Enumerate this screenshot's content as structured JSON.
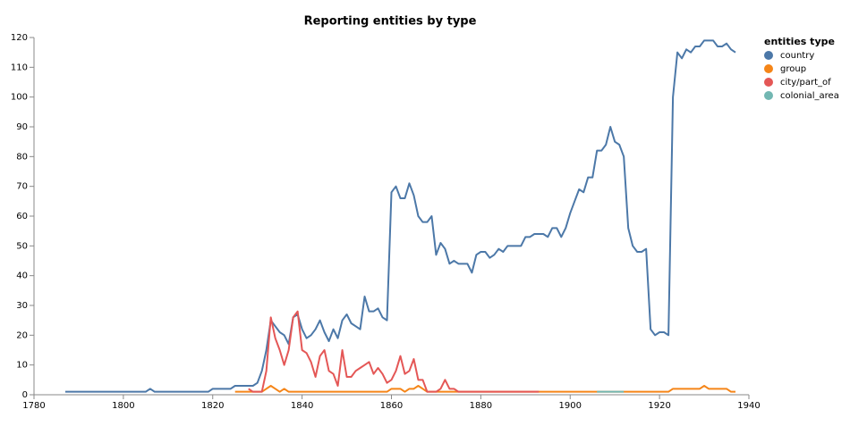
{
  "chart_data": {
    "type": "line",
    "title": "Reporting entities by type",
    "legend_title": "entities type",
    "legend_position": "right",
    "x": [
      1787,
      1788,
      1789,
      1790,
      1791,
      1792,
      1793,
      1794,
      1795,
      1796,
      1797,
      1798,
      1799,
      1800,
      1801,
      1802,
      1803,
      1804,
      1805,
      1806,
      1807,
      1808,
      1809,
      1810,
      1811,
      1812,
      1813,
      1814,
      1815,
      1816,
      1817,
      1818,
      1819,
      1820,
      1821,
      1822,
      1823,
      1824,
      1825,
      1826,
      1827,
      1828,
      1829,
      1830,
      1831,
      1832,
      1833,
      1834,
      1835,
      1836,
      1837,
      1838,
      1839,
      1840,
      1841,
      1842,
      1843,
      1844,
      1845,
      1846,
      1847,
      1848,
      1849,
      1850,
      1851,
      1852,
      1853,
      1854,
      1855,
      1856,
      1857,
      1858,
      1859,
      1860,
      1861,
      1862,
      1863,
      1864,
      1865,
      1866,
      1867,
      1868,
      1869,
      1870,
      1871,
      1872,
      1873,
      1874,
      1875,
      1876,
      1877,
      1878,
      1879,
      1880,
      1881,
      1882,
      1883,
      1884,
      1885,
      1886,
      1887,
      1888,
      1889,
      1890,
      1891,
      1892,
      1893,
      1894,
      1895,
      1896,
      1897,
      1898,
      1899,
      1900,
      1901,
      1902,
      1903,
      1904,
      1905,
      1906,
      1907,
      1908,
      1909,
      1910,
      1911,
      1912,
      1913,
      1914,
      1915,
      1916,
      1917,
      1918,
      1919,
      1920,
      1921,
      1922,
      1923,
      1924,
      1925,
      1926,
      1927,
      1928,
      1929,
      1930,
      1931,
      1932,
      1933,
      1934,
      1935,
      1936,
      1937
    ],
    "series": [
      {
        "name": "country",
        "color": "#4c78a8",
        "values": [
          1,
          1,
          1,
          1,
          1,
          1,
          1,
          1,
          1,
          1,
          1,
          1,
          1,
          1,
          1,
          1,
          1,
          1,
          1,
          2,
          1,
          1,
          1,
          1,
          1,
          1,
          1,
          1,
          1,
          1,
          1,
          1,
          1,
          2,
          2,
          2,
          2,
          2,
          3,
          3,
          3,
          3,
          3,
          4,
          8,
          15,
          25,
          23,
          21,
          20,
          17,
          26,
          27,
          22,
          19,
          20,
          22,
          25,
          21,
          18,
          22,
          19,
          25,
          27,
          24,
          23,
          22,
          33,
          28,
          28,
          29,
          26,
          25,
          68,
          70,
          66,
          66,
          71,
          67,
          60,
          58,
          58,
          60,
          47,
          51,
          49,
          44,
          45,
          44,
          44,
          44,
          41,
          47,
          48,
          48,
          46,
          47,
          49,
          48,
          50,
          50,
          50,
          50,
          53,
          53,
          54,
          54,
          54,
          53,
          56,
          56,
          53,
          56,
          61,
          65,
          69,
          68,
          73,
          73,
          82,
          82,
          84,
          90,
          85,
          84,
          80,
          56,
          50,
          48,
          48,
          49,
          22,
          20,
          21,
          21,
          20,
          100,
          115,
          113,
          116,
          115,
          117,
          117,
          119,
          119,
          119,
          117,
          117,
          118,
          116,
          115
        ]
      },
      {
        "name": "group",
        "color": "#f58518",
        "values": [
          null,
          null,
          null,
          null,
          null,
          null,
          null,
          null,
          null,
          null,
          null,
          null,
          null,
          null,
          null,
          null,
          null,
          null,
          null,
          null,
          null,
          null,
          null,
          null,
          null,
          null,
          null,
          null,
          null,
          null,
          null,
          null,
          null,
          null,
          null,
          null,
          null,
          null,
          1,
          1,
          1,
          1,
          1,
          1,
          1,
          2,
          3,
          2,
          1,
          2,
          1,
          1,
          1,
          1,
          1,
          1,
          1,
          1,
          1,
          1,
          1,
          1,
          1,
          1,
          1,
          1,
          1,
          1,
          1,
          1,
          1,
          1,
          1,
          2,
          2,
          2,
          1,
          2,
          2,
          3,
          2,
          1,
          1,
          1,
          1,
          1,
          1,
          1,
          1,
          1,
          1,
          1,
          1,
          1,
          1,
          1,
          1,
          1,
          1,
          1,
          1,
          1,
          1,
          1,
          1,
          1,
          1,
          1,
          1,
          1,
          1,
          1,
          1,
          1,
          1,
          1,
          1,
          1,
          1,
          1,
          1,
          1,
          1,
          1,
          1,
          1,
          1,
          1,
          1,
          1,
          1,
          1,
          1,
          1,
          1,
          1,
          2,
          2,
          2,
          2,
          2,
          2,
          2,
          3,
          2,
          2,
          2,
          2,
          2,
          1,
          1
        ]
      },
      {
        "name": "city/part_of",
        "color": "#e45756",
        "values": [
          null,
          null,
          null,
          null,
          null,
          null,
          null,
          null,
          null,
          null,
          null,
          null,
          null,
          null,
          null,
          null,
          null,
          null,
          null,
          null,
          null,
          null,
          null,
          null,
          null,
          null,
          null,
          null,
          null,
          null,
          null,
          null,
          null,
          null,
          null,
          null,
          null,
          null,
          null,
          null,
          null,
          2,
          1,
          1,
          1,
          8,
          26,
          19,
          15,
          10,
          15,
          26,
          28,
          15,
          14,
          11,
          6,
          13,
          15,
          8,
          7,
          3,
          15,
          6,
          6,
          8,
          9,
          10,
          11,
          7,
          9,
          7,
          4,
          5,
          8,
          13,
          7,
          8,
          12,
          5,
          5,
          1,
          1,
          1,
          2,
          5,
          2,
          2,
          1,
          1,
          1,
          1,
          1,
          1,
          1,
          1,
          1,
          1,
          1,
          1,
          1,
          1,
          1,
          1,
          1,
          1,
          1,
          null,
          null,
          null,
          null,
          null,
          null,
          null,
          null,
          null,
          null,
          null,
          null,
          null,
          null,
          null,
          null,
          null,
          null,
          null,
          null,
          null,
          null,
          null,
          null,
          null,
          null,
          null,
          null,
          null,
          null,
          null,
          null,
          null,
          null,
          null,
          null,
          null,
          null,
          null,
          null,
          null,
          null,
          null,
          null
        ]
      },
      {
        "name": "colonial_area",
        "color": "#72b7b2",
        "values": [
          null,
          null,
          null,
          null,
          null,
          null,
          null,
          null,
          null,
          null,
          null,
          null,
          null,
          null,
          null,
          null,
          null,
          null,
          null,
          null,
          null,
          null,
          null,
          null,
          null,
          null,
          null,
          null,
          null,
          null,
          null,
          null,
          null,
          null,
          null,
          null,
          null,
          null,
          null,
          null,
          null,
          null,
          null,
          null,
          null,
          null,
          null,
          null,
          null,
          null,
          null,
          null,
          null,
          null,
          null,
          null,
          null,
          null,
          null,
          null,
          null,
          null,
          null,
          null,
          null,
          null,
          null,
          null,
          null,
          null,
          null,
          null,
          null,
          null,
          null,
          null,
          null,
          null,
          null,
          null,
          null,
          null,
          null,
          null,
          null,
          null,
          null,
          null,
          null,
          null,
          null,
          null,
          null,
          null,
          null,
          null,
          null,
          null,
          null,
          null,
          null,
          null,
          null,
          null,
          null,
          null,
          null,
          null,
          null,
          null,
          null,
          null,
          null,
          null,
          null,
          null,
          null,
          null,
          null,
          1,
          1,
          1,
          1,
          1,
          1,
          1,
          null,
          null,
          null,
          null,
          null,
          null,
          null,
          null,
          null,
          null,
          null,
          null,
          null,
          null,
          null,
          null,
          null,
          null,
          null,
          null,
          null,
          null,
          null,
          null,
          null
        ]
      }
    ],
    "xlim": [
      1780,
      1940
    ],
    "xticks": [
      1780,
      1800,
      1820,
      1840,
      1860,
      1880,
      1900,
      1920,
      1940
    ],
    "ylim": [
      0,
      120
    ],
    "yticks": [
      0,
      10,
      20,
      30,
      40,
      50,
      60,
      70,
      80,
      90,
      100,
      110,
      120
    ]
  }
}
